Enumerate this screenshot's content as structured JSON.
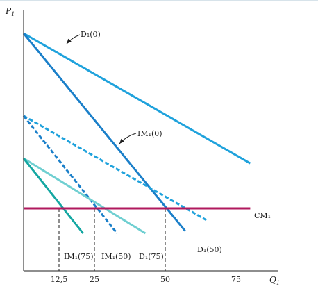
{
  "chart_data": {
    "type": "line",
    "title": "",
    "xlabel": "Q",
    "xlabel_sub": "1",
    "ylabel": "P",
    "ylabel_sub": "1",
    "xlim": [
      0,
      90
    ],
    "ylim": [
      0,
      100
    ],
    "x_ticks": [
      {
        "value": 12.5,
        "label": "12,5"
      },
      {
        "value": 25,
        "label": "25"
      },
      {
        "value": 50,
        "label": "50"
      },
      {
        "value": 75,
        "label": "75"
      }
    ],
    "grid": false,
    "series": [
      {
        "name": "D₁(0)",
        "style": "solid",
        "color": "#1fa2dc",
        "x": [
          0,
          80
        ],
        "y": [
          95,
          43
        ]
      },
      {
        "name": "IM₁(0)",
        "style": "solid",
        "color": "#1a7fc9",
        "x": [
          0,
          57
        ],
        "y": [
          95,
          16
        ]
      },
      {
        "name": "D₁(50)",
        "style": "dashed",
        "color": "#1fa2dc",
        "x": [
          0,
          65
        ],
        "y": [
          62,
          20
        ]
      },
      {
        "name": "IM₁(50)",
        "style": "dashed",
        "color": "#1a7fc9",
        "x": [
          0,
          33
        ],
        "y": [
          62,
          15
        ]
      },
      {
        "name": "D₁(75)",
        "style": "solid",
        "color": "#6fcfd1",
        "x": [
          0,
          43
        ],
        "y": [
          45,
          15
        ]
      },
      {
        "name": "IM₁(75)",
        "style": "solid",
        "color": "#14a7a2",
        "x": [
          0,
          21
        ],
        "y": [
          45,
          15
        ]
      },
      {
        "name": "CM₁",
        "style": "solid",
        "color": "#b0195e",
        "x": [
          0,
          80
        ],
        "y": [
          25,
          25
        ]
      }
    ],
    "dropline_x": [
      12.5,
      25,
      50
    ],
    "dropline_y": 25
  }
}
